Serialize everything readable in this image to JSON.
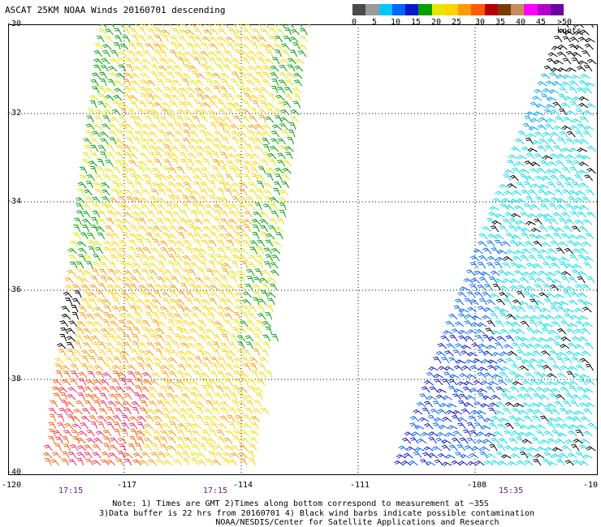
{
  "title": "ASCAT 25KM NOAA Winds 20160701 descending",
  "colorbar": {
    "colors": [
      "#4a4a4a",
      "#9a9a9a",
      "#00c8ff",
      "#0064ff",
      "#0a18c8",
      "#00a000",
      "#e6e600",
      "#ffd200",
      "#ff9a00",
      "#ff5a00",
      "#b40000",
      "#7a3c00",
      "#c88c5a",
      "#ff00ff",
      "#b400c8",
      "#6e00a0"
    ],
    "labels": [
      "0",
      "5",
      "10",
      "15",
      "20",
      "25",
      "30",
      "35",
      "40",
      "45",
      ">50 knots"
    ]
  },
  "axes": {
    "y_ticks": [
      "-30",
      "-32",
      "-34",
      "-36",
      "-38",
      "-40"
    ],
    "x_ticks": [
      "-120",
      "-117",
      "-114",
      "-111",
      "-108",
      "-10"
    ]
  },
  "times": [
    "17:15",
    "17:15",
    "15:35"
  ],
  "notes": [
    "Note: 1) Times are GMT 2)Times along bottom correspond to measurement at ~35S",
    "3)Data buffer is 22 hrs from 20160701 4) Black wind barbs indicate possible contamination",
    "NOAA/NESDIS/Center for Satellite Applications and Research"
  ]
}
